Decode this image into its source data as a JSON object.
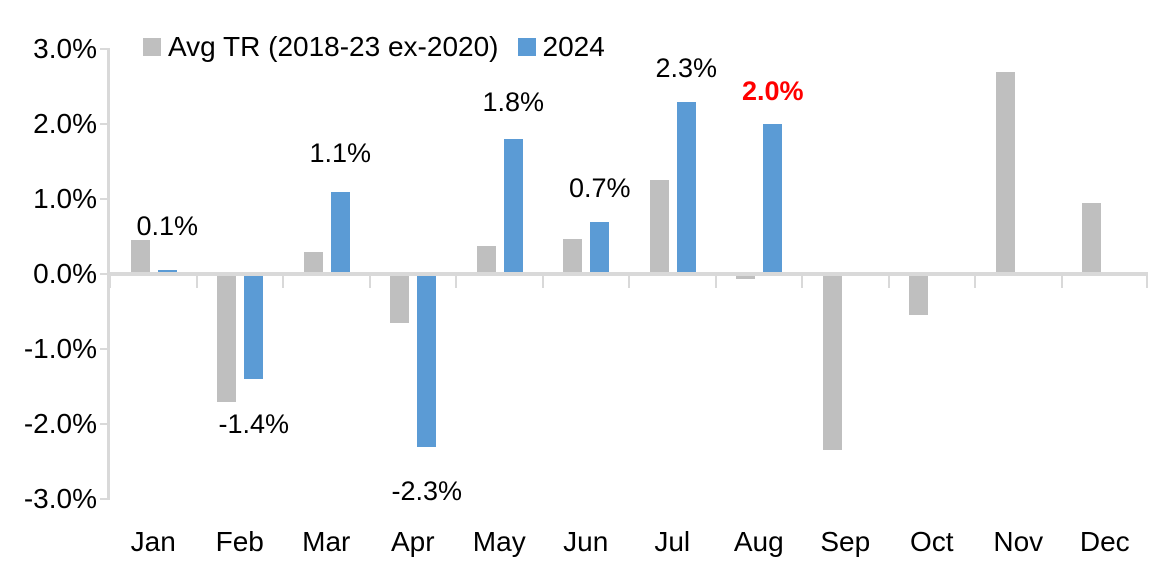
{
  "chart_data": {
    "type": "bar",
    "title": "",
    "xlabel": "",
    "ylabel": "",
    "unit": "percent",
    "ylim": [
      -3.0,
      3.0
    ],
    "grid": false,
    "legend_position": "top",
    "axis_color": "#D9D9D9",
    "text_color": "#000000",
    "categories": [
      "Jan",
      "Feb",
      "Mar",
      "Apr",
      "May",
      "Jun",
      "Jul",
      "Aug",
      "Sep",
      "Oct",
      "Nov",
      "Dec"
    ],
    "y_ticks": [
      {
        "label": "3.0%",
        "value": 3.0
      },
      {
        "label": "2.0%",
        "value": 2.0
      },
      {
        "label": "1.0%",
        "value": 1.0
      },
      {
        "label": "0.0%",
        "value": 0.0
      },
      {
        "label": "-1.0%",
        "value": -1.0
      },
      {
        "label": "-2.0%",
        "value": -2.0
      },
      {
        "label": "-3.0%",
        "value": -3.0
      }
    ],
    "series": [
      {
        "name": "Avg TR (2018-23 ex-2020)",
        "color": "#BFBFBF",
        "values": [
          0.45,
          -1.7,
          0.3,
          -0.65,
          0.38,
          0.47,
          1.25,
          -0.06,
          -2.35,
          -0.55,
          2.7,
          0.95
        ]
      },
      {
        "name": "2024",
        "color": "#5B9BD5",
        "values": [
          0.05,
          -1.4,
          1.1,
          -2.3,
          1.8,
          0.7,
          2.3,
          2.0,
          null,
          null,
          null,
          null
        ],
        "data_labels": [
          {
            "index": 0,
            "text": "0.1%",
            "color": "#000000",
            "bold": false,
            "gap": 0
          },
          {
            "index": 1,
            "text": "-1.4%",
            "color": "#000000",
            "bold": false,
            "gap": 8
          },
          {
            "index": 2,
            "text": "1.1%",
            "color": "#000000",
            "bold": false,
            "gap": 25
          },
          {
            "index": 3,
            "text": "-2.3%",
            "color": "#000000",
            "bold": false,
            "gap": 30
          },
          {
            "index": 4,
            "text": "1.8%",
            "color": "#000000",
            "bold": false,
            "gap": 23
          },
          {
            "index": 5,
            "text": "0.7%",
            "color": "#000000",
            "bold": false,
            "gap": 20
          },
          {
            "index": 6,
            "text": "2.3%",
            "color": "#000000",
            "bold": false,
            "gap": 20
          },
          {
            "index": 7,
            "text": "2.0%",
            "color": "#FF0000",
            "bold": true,
            "gap": 19
          }
        ]
      }
    ]
  }
}
